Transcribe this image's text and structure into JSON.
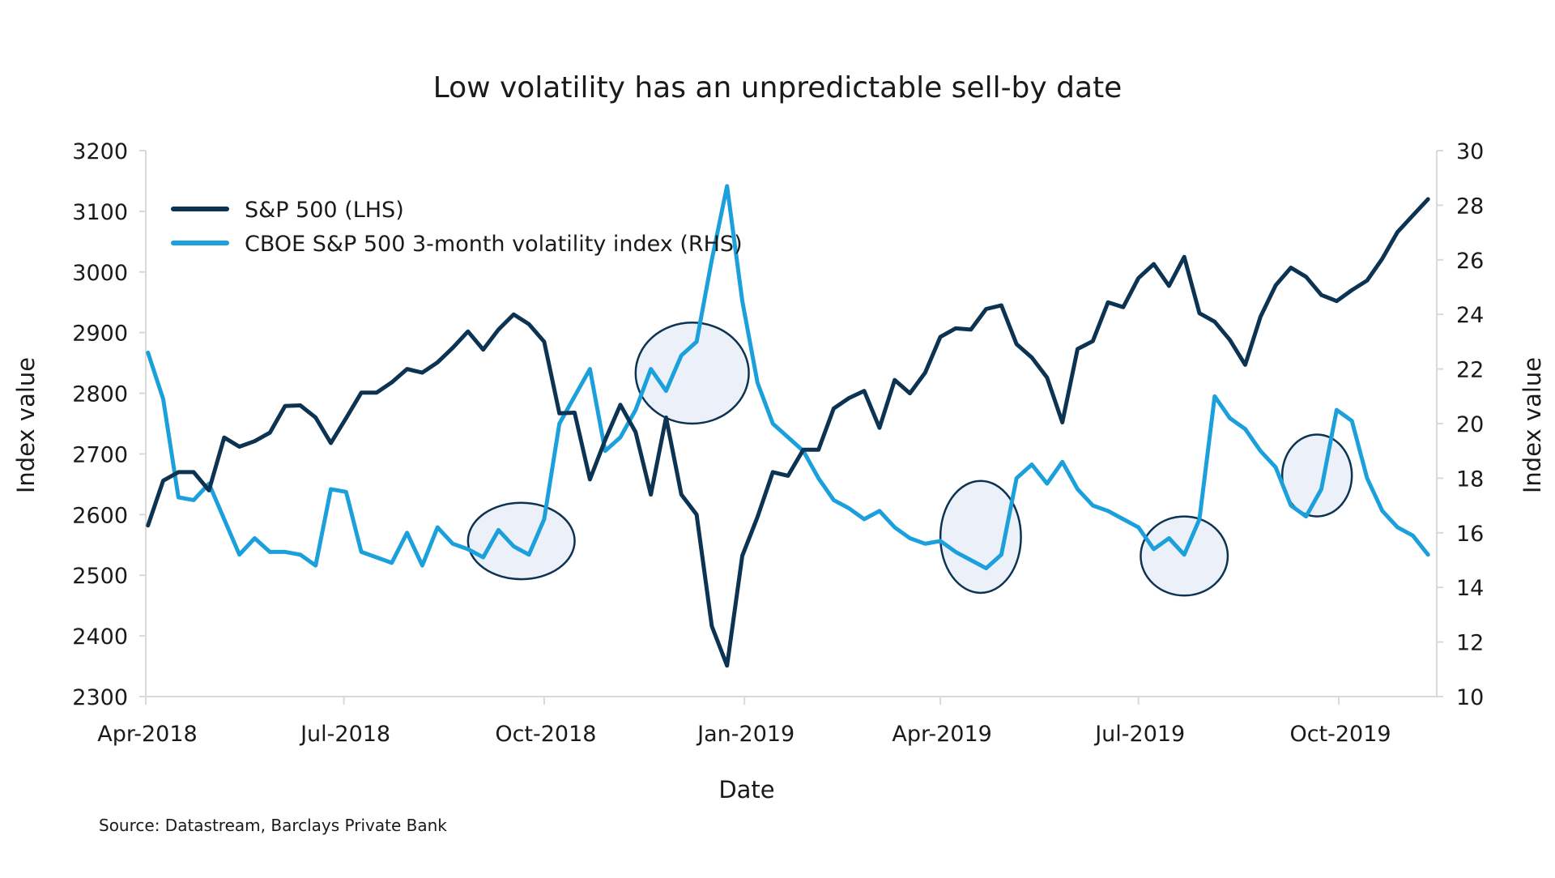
{
  "chart_data": {
    "type": "line",
    "title": "Low volatility has an unpredictable sell-by date",
    "xlabel": "Date",
    "ylabel_left": "Index value",
    "ylabel_right": "Index value",
    "source": "Source: Datastream, Barclays Private Bank",
    "x_ticks": [
      "Apr-2018",
      "Jul-2018",
      "Oct-2018",
      "Jan-2019",
      "Apr-2019",
      "Jul-2019",
      "Oct-2019"
    ],
    "y_left_ticks": [
      "3200",
      "3100",
      "3000",
      "2900",
      "2800",
      "2700",
      "2600",
      "2500",
      "2400",
      "2300"
    ],
    "y_right_ticks": [
      "30",
      "28",
      "26",
      "24",
      "22",
      "20",
      "18",
      "16",
      "14",
      "12",
      "10"
    ],
    "ylim_left": [
      2300,
      3200
    ],
    "ylim_right": [
      10,
      30
    ],
    "xlim": [
      "2018-04-01",
      "2019-11-15"
    ],
    "grid": false,
    "legend_position": "top-left",
    "series": [
      {
        "name": "S&P 500 (LHS)",
        "axis": "left",
        "color": "#0d3352",
        "x": [
          "2018-04-02",
          "2018-04-09",
          "2018-04-16",
          "2018-04-23",
          "2018-04-30",
          "2018-05-07",
          "2018-05-14",
          "2018-05-21",
          "2018-05-28",
          "2018-06-04",
          "2018-06-11",
          "2018-06-18",
          "2018-06-25",
          "2018-07-02",
          "2018-07-09",
          "2018-07-16",
          "2018-07-23",
          "2018-07-30",
          "2018-08-06",
          "2018-08-13",
          "2018-08-20",
          "2018-08-27",
          "2018-09-03",
          "2018-09-10",
          "2018-09-17",
          "2018-09-24",
          "2018-10-01",
          "2018-10-08",
          "2018-10-15",
          "2018-10-22",
          "2018-10-29",
          "2018-11-05",
          "2018-11-12",
          "2018-11-19",
          "2018-11-26",
          "2018-12-03",
          "2018-12-10",
          "2018-12-17",
          "2018-12-24",
          "2018-12-31",
          "2019-01-07",
          "2019-01-14",
          "2019-01-21",
          "2019-01-28",
          "2019-02-04",
          "2019-02-11",
          "2019-02-18",
          "2019-02-25",
          "2019-03-04",
          "2019-03-11",
          "2019-03-18",
          "2019-03-25",
          "2019-04-01",
          "2019-04-08",
          "2019-04-15",
          "2019-04-22",
          "2019-04-29",
          "2019-05-06",
          "2019-05-13",
          "2019-05-20",
          "2019-05-27",
          "2019-06-03",
          "2019-06-10",
          "2019-06-17",
          "2019-06-24",
          "2019-07-01",
          "2019-07-08",
          "2019-07-15",
          "2019-07-22",
          "2019-07-29",
          "2019-08-05",
          "2019-08-12",
          "2019-08-19",
          "2019-08-26",
          "2019-09-02",
          "2019-09-09",
          "2019-09-16",
          "2019-09-23",
          "2019-09-30",
          "2019-10-07",
          "2019-10-14",
          "2019-10-21",
          "2019-10-28",
          "2019-11-04",
          "2019-11-11"
        ],
        "values": [
          2582,
          2656,
          2670,
          2670,
          2640,
          2727,
          2712,
          2721,
          2735,
          2779,
          2780,
          2760,
          2718,
          2759,
          2801,
          2801,
          2818,
          2840,
          2834,
          2851,
          2875,
          2902,
          2872,
          2905,
          2930,
          2914,
          2885,
          2767,
          2768,
          2658,
          2723,
          2781,
          2736,
          2633,
          2760,
          2633,
          2600,
          2416,
          2351,
          2532,
          2596,
          2670,
          2664,
          2707,
          2707,
          2775,
          2792,
          2804,
          2743,
          2822,
          2800,
          2834,
          2893,
          2907,
          2905,
          2939,
          2945,
          2881,
          2859,
          2826,
          2752,
          2873,
          2886,
          2950,
          2942,
          2990,
          3013,
          2977,
          3025,
          2932,
          2918,
          2888,
          2847,
          2926,
          2978,
          3007,
          2992,
          2962,
          2952,
          2970,
          2986,
          3022,
          3066,
          3093,
          3120
        ]
      },
      {
        "name": "CBOE S&P 500 3-month volatility index (RHS)",
        "axis": "right",
        "color": "#1ba0dc",
        "x": [
          "2018-04-02",
          "2018-04-09",
          "2018-04-16",
          "2018-04-23",
          "2018-04-30",
          "2018-05-07",
          "2018-05-14",
          "2018-05-21",
          "2018-05-28",
          "2018-06-04",
          "2018-06-11",
          "2018-06-18",
          "2018-06-25",
          "2018-07-02",
          "2018-07-09",
          "2018-07-16",
          "2018-07-23",
          "2018-07-30",
          "2018-08-06",
          "2018-08-13",
          "2018-08-20",
          "2018-08-27",
          "2018-09-03",
          "2018-09-10",
          "2018-09-17",
          "2018-09-24",
          "2018-10-01",
          "2018-10-08",
          "2018-10-15",
          "2018-10-22",
          "2018-10-29",
          "2018-11-05",
          "2018-11-12",
          "2018-11-19",
          "2018-11-26",
          "2018-12-03",
          "2018-12-10",
          "2018-12-17",
          "2018-12-24",
          "2018-12-31",
          "2019-01-07",
          "2019-01-14",
          "2019-01-21",
          "2019-01-28",
          "2019-02-04",
          "2019-02-11",
          "2019-02-18",
          "2019-02-25",
          "2019-03-04",
          "2019-03-11",
          "2019-03-18",
          "2019-03-25",
          "2019-04-01",
          "2019-04-08",
          "2019-04-15",
          "2019-04-22",
          "2019-04-29",
          "2019-05-06",
          "2019-05-13",
          "2019-05-20",
          "2019-05-27",
          "2019-06-03",
          "2019-06-10",
          "2019-06-17",
          "2019-06-24",
          "2019-07-01",
          "2019-07-08",
          "2019-07-15",
          "2019-07-22",
          "2019-07-29",
          "2019-08-05",
          "2019-08-12",
          "2019-08-19",
          "2019-08-26",
          "2019-09-02",
          "2019-09-09",
          "2019-09-16",
          "2019-09-23",
          "2019-09-30",
          "2019-10-07",
          "2019-10-14",
          "2019-10-21",
          "2019-10-28",
          "2019-11-04",
          "2019-11-11"
        ],
        "values": [
          22.6,
          20.9,
          17.3,
          17.2,
          17.8,
          16.5,
          15.2,
          15.8,
          15.3,
          15.3,
          15.2,
          14.8,
          17.6,
          17.5,
          15.3,
          15.1,
          14.9,
          16.0,
          14.8,
          16.2,
          15.6,
          15.4,
          15.1,
          16.1,
          15.5,
          15.2,
          16.5,
          20.0,
          21.0,
          22.0,
          19.0,
          19.5,
          20.5,
          22.0,
          21.2,
          22.5,
          23.0,
          26.0,
          28.7,
          24.5,
          21.5,
          20.0,
          19.5,
          19.0,
          18.0,
          17.2,
          16.9,
          16.5,
          16.8,
          16.2,
          15.8,
          15.6,
          15.7,
          15.3,
          15.0,
          14.7,
          15.2,
          18.0,
          18.5,
          17.8,
          18.6,
          17.6,
          17.0,
          16.8,
          16.5,
          16.2,
          15.4,
          15.8,
          15.2,
          16.5,
          21.0,
          20.2,
          19.8,
          19.0,
          18.4,
          17.0,
          16.6,
          17.6,
          20.5,
          20.1,
          18.0,
          16.8,
          16.2,
          15.9,
          15.2
        ]
      }
    ],
    "annotations": [
      {
        "type": "ellipse",
        "label": "",
        "x": [
          "2018-08-27",
          "2018-10-15"
        ],
        "y_right": [
          14.3,
          17.1
        ]
      },
      {
        "type": "ellipse",
        "label": "",
        "x": [
          "2018-11-12",
          "2019-01-03"
        ],
        "y_right": [
          20.0,
          23.7
        ]
      },
      {
        "type": "ellipse",
        "label": "",
        "x": [
          "2019-04-01",
          "2019-05-08"
        ],
        "y_right": [
          13.8,
          17.9
        ]
      },
      {
        "type": "ellipse",
        "label": "",
        "x": [
          "2019-07-02",
          "2019-08-11"
        ],
        "y_right": [
          13.7,
          16.6
        ]
      },
      {
        "type": "ellipse",
        "label": "",
        "x": [
          "2019-09-05",
          "2019-10-07"
        ],
        "y_right": [
          16.6,
          19.6
        ]
      }
    ]
  }
}
